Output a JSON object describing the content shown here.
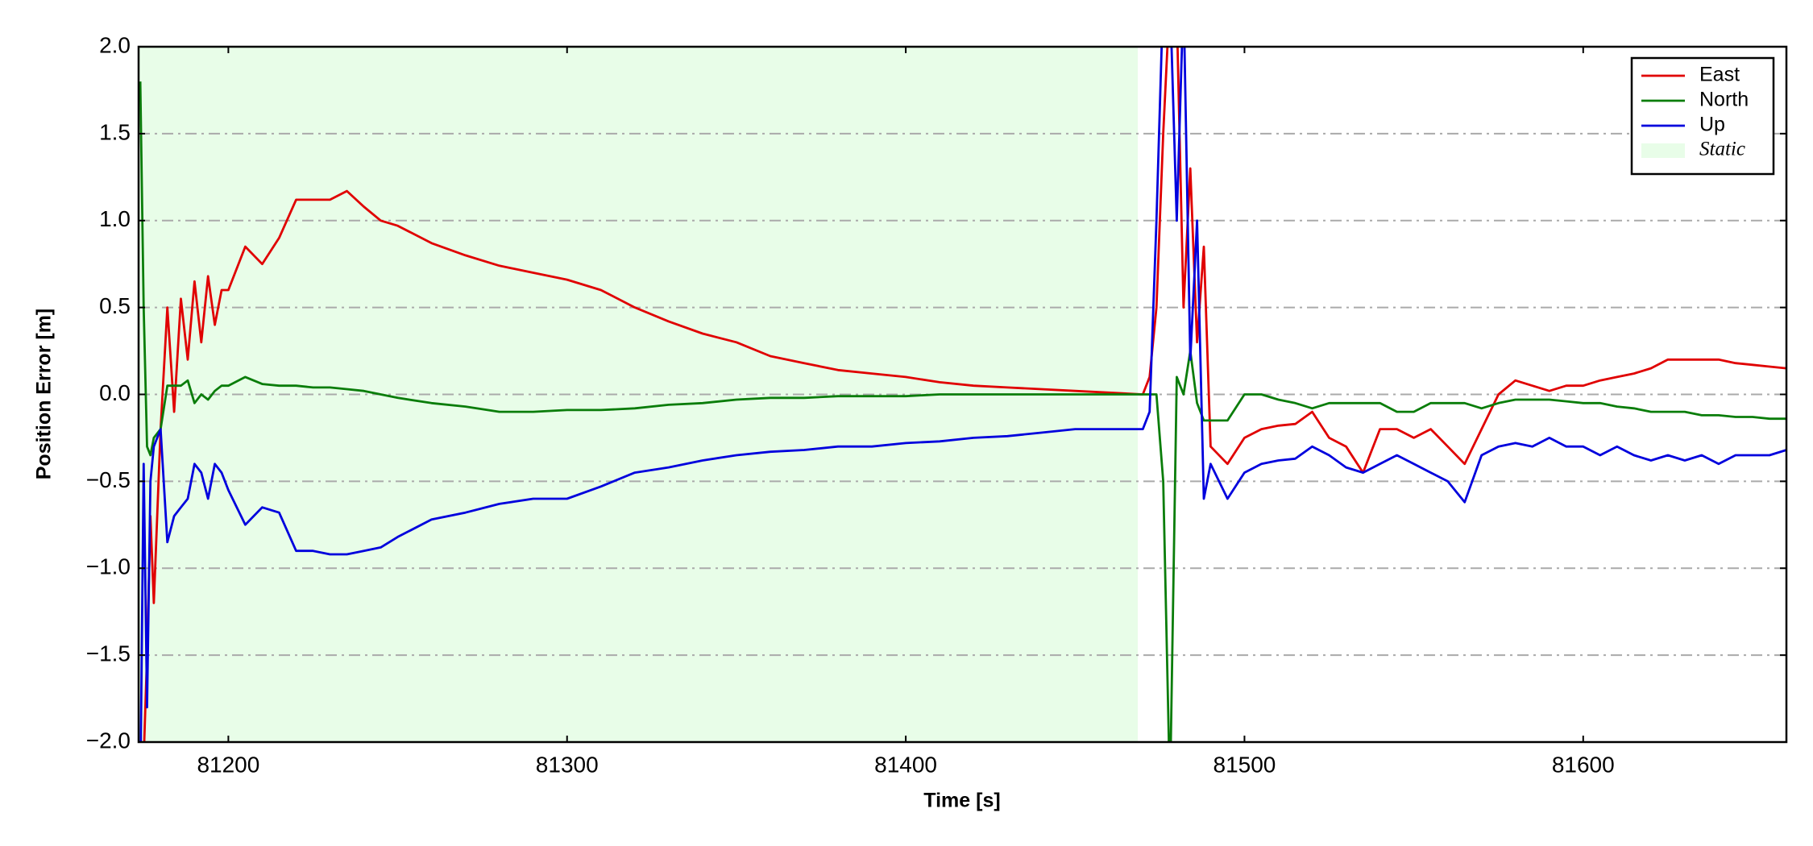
{
  "chart_data": {
    "type": "line",
    "xlabel": "Time [s]",
    "ylabel": "Position Error [m]",
    "x": [
      81174,
      81175,
      81176,
      81177,
      81178,
      81180,
      81182,
      81184,
      81186,
      81188,
      81190,
      81192,
      81194,
      81196,
      81198,
      81200,
      81205,
      81210,
      81215,
      81220,
      81225,
      81230,
      81235,
      81240,
      81245,
      81250,
      81260,
      81270,
      81280,
      81290,
      81300,
      81310,
      81320,
      81330,
      81340,
      81350,
      81360,
      81370,
      81380,
      81390,
      81400,
      81410,
      81420,
      81430,
      81440,
      81450,
      81460,
      81470,
      81472,
      81474,
      81476,
      81478,
      81480,
      81482,
      81484,
      81486,
      81488,
      81490,
      81495,
      81500,
      81505,
      81510,
      81515,
      81520,
      81525,
      81530,
      81535,
      81540,
      81545,
      81550,
      81555,
      81560,
      81565,
      81570,
      81575,
      81580,
      81585,
      81590,
      81595,
      81600,
      81605,
      81610,
      81615,
      81620,
      81625,
      81630,
      81635,
      81640,
      81645,
      81650,
      81655,
      81660
    ],
    "series": [
      {
        "name": "East",
        "color": "#e00000",
        "values": [
          -2.3,
          -2.1,
          -1.5,
          -0.7,
          -1.2,
          -0.2,
          0.5,
          -0.1,
          0.55,
          0.2,
          0.65,
          0.3,
          0.68,
          0.4,
          0.6,
          0.6,
          0.85,
          0.75,
          0.9,
          1.12,
          1.12,
          1.12,
          1.17,
          1.08,
          1.0,
          0.97,
          0.87,
          0.8,
          0.74,
          0.7,
          0.66,
          0.6,
          0.5,
          0.42,
          0.35,
          0.3,
          0.22,
          0.18,
          0.14,
          0.12,
          0.1,
          0.07,
          0.05,
          0.04,
          0.03,
          0.02,
          0.01,
          0.0,
          0.1,
          0.5,
          1.5,
          2.3,
          2.2,
          0.5,
          1.3,
          0.3,
          0.85,
          -0.3,
          -0.4,
          -0.25,
          -0.2,
          -0.18,
          -0.17,
          -0.1,
          -0.25,
          -0.3,
          -0.45,
          -0.2,
          -0.2,
          -0.25,
          -0.2,
          -0.3,
          -0.4,
          -0.2,
          0.0,
          0.08,
          0.05,
          0.02,
          0.05,
          0.05,
          0.08,
          0.1,
          0.12,
          0.15,
          0.2,
          0.2,
          0.2,
          0.2,
          0.18,
          0.17,
          0.16,
          0.15
        ]
      },
      {
        "name": "North",
        "color": "#0a7d0a",
        "values": [
          1.8,
          0.5,
          -0.3,
          -0.35,
          -0.25,
          -0.2,
          0.05,
          0.05,
          0.05,
          0.08,
          -0.05,
          0.0,
          -0.03,
          0.02,
          0.05,
          0.05,
          0.1,
          0.06,
          0.05,
          0.05,
          0.04,
          0.04,
          0.03,
          0.02,
          0.0,
          -0.02,
          -0.05,
          -0.07,
          -0.1,
          -0.1,
          -0.09,
          -0.09,
          -0.08,
          -0.06,
          -0.05,
          -0.03,
          -0.02,
          -0.02,
          -0.01,
          -0.01,
          -0.01,
          0.0,
          0.0,
          0.0,
          0.0,
          0.0,
          0.0,
          0.0,
          0.0,
          0.0,
          -0.5,
          -2.3,
          0.1,
          0.0,
          0.25,
          -0.05,
          -0.15,
          -0.15,
          -0.15,
          0.0,
          0.0,
          -0.03,
          -0.05,
          -0.08,
          -0.05,
          -0.05,
          -0.05,
          -0.05,
          -0.1,
          -0.1,
          -0.05,
          -0.05,
          -0.05,
          -0.08,
          -0.05,
          -0.03,
          -0.03,
          -0.03,
          -0.04,
          -0.05,
          -0.05,
          -0.07,
          -0.08,
          -0.1,
          -0.1,
          -0.1,
          -0.12,
          -0.12,
          -0.13,
          -0.13,
          -0.14,
          -0.14
        ]
      },
      {
        "name": "Up",
        "color": "#0000dd",
        "values": [
          -2.3,
          -0.4,
          -1.8,
          -0.5,
          -0.3,
          -0.2,
          -0.85,
          -0.7,
          -0.65,
          -0.6,
          -0.4,
          -0.45,
          -0.6,
          -0.4,
          -0.45,
          -0.55,
          -0.75,
          -0.65,
          -0.68,
          -0.9,
          -0.9,
          -0.92,
          -0.92,
          -0.9,
          -0.88,
          -0.82,
          -0.72,
          -0.68,
          -0.63,
          -0.6,
          -0.6,
          -0.53,
          -0.45,
          -0.42,
          -0.38,
          -0.35,
          -0.33,
          -0.32,
          -0.3,
          -0.3,
          -0.28,
          -0.27,
          -0.25,
          -0.24,
          -0.22,
          -0.2,
          -0.2,
          -0.2,
          -0.1,
          1.0,
          2.3,
          2.3,
          1.0,
          2.3,
          0.2,
          1.0,
          -0.6,
          -0.4,
          -0.6,
          -0.45,
          -0.4,
          -0.38,
          -0.37,
          -0.3,
          -0.35,
          -0.42,
          -0.45,
          -0.4,
          -0.35,
          -0.4,
          -0.45,
          -0.5,
          -0.62,
          -0.35,
          -0.3,
          -0.28,
          -0.3,
          -0.25,
          -0.3,
          -0.3,
          -0.35,
          -0.3,
          -0.35,
          -0.38,
          -0.35,
          -0.38,
          -0.35,
          -0.4,
          -0.35,
          -0.35,
          -0.35,
          -0.32
        ]
      }
    ],
    "static_span": {
      "label": "Static",
      "range": [
        81173.5,
        81468.5
      ],
      "color": "#e8fde8"
    },
    "xlim": [
      81173.5,
      81660
    ],
    "ylim": [
      -2,
      2
    ],
    "xticks": [
      81200,
      81300,
      81400,
      81500,
      81600
    ],
    "yticks": [
      {
        "value": 2,
        "label": "2.0"
      },
      {
        "value": 1.5,
        "label": "1.5"
      },
      {
        "value": 1,
        "label": "1.0"
      },
      {
        "value": 0.5,
        "label": "0.5"
      },
      {
        "value": 0,
        "label": "0.0"
      },
      {
        "value": -0.5,
        "label": "−0.5"
      },
      {
        "value": -1,
        "label": "−1.0"
      },
      {
        "value": -1.5,
        "label": "−1.5"
      },
      {
        "value": -2,
        "label": "−2.0"
      }
    ],
    "grid": true,
    "legend": "upper right"
  }
}
